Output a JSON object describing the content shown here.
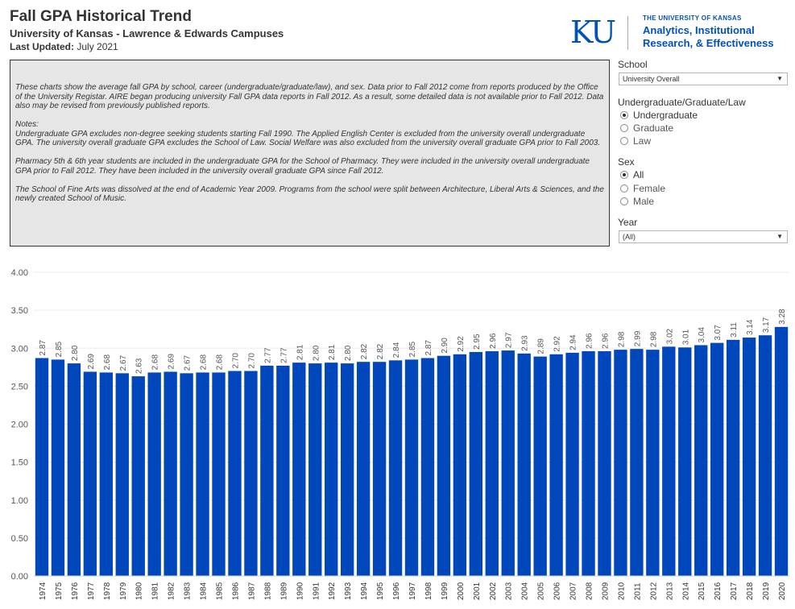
{
  "header": {
    "title": "Fall GPA Historical Trend",
    "subtitle": "University of Kansas - Lawrence & Edwards Campuses",
    "updated_label": "Last Updated:",
    "updated_value": "July 2021"
  },
  "logo": {
    "mark": "KU",
    "top": "THE UNIVERSITY OF KANSAS",
    "line1": "Analytics, Institutional",
    "line2": "Research, & Effectiveness"
  },
  "notes": {
    "p1": "These charts show the average fall GPA by school, career (undergraduate/graduate/law), and sex. Data prior to Fall 2012 come from reports produced by the Office of the University Registar. AIRE began producing university Fall GPA data reports in Fall 2012. As a result, some detailed data is not available prior to Fall 2012. Data also may be revised from previously published reports.",
    "p2_title": "Notes:",
    "p2": "Undergraduate GPA excludes non-degree seeking students starting Fall 1990. The Applied English Center is excluded from the university overall undergraduate GPA. The university overall graduate GPA excludes the School of Law. Social Welfare was also excluded from the university overall graduate GPA prior to Fall 2003.",
    "p3": "Pharmacy 5th & 6th year students are included in the undergraduate GPA for the School of Pharmacy. They were included in the university overall undergraduate GPA prior to Fall 2012. They have been included in the university overall graduate GPA since Fall 2012.",
    "p4": "The School of Fine Arts was dissolved at the end of Academic Year 2009. Programs from the school were split between Architecture, Liberal Arts & Sciences, and the newly created School of Music."
  },
  "filters": {
    "school": {
      "label": "School",
      "value": "University Overall"
    },
    "career": {
      "label": "Undergraduate/Graduate/Law",
      "options": [
        "Undergraduate",
        "Graduate",
        "Law"
      ],
      "selected": "Undergraduate"
    },
    "sex": {
      "label": "Sex",
      "options": [
        "All",
        "Female",
        "Male"
      ],
      "selected": "All"
    },
    "year": {
      "label": "Year",
      "value": "(All)"
    }
  },
  "icons": {
    "dropdown": "chevron-down-icon",
    "radio": "radio-icon"
  },
  "colors": {
    "bar": "#0047bb",
    "accent": "#0051ba"
  },
  "chart_data": {
    "type": "bar",
    "title": "",
    "xlabel": "",
    "ylabel": "",
    "ylim": [
      0,
      4
    ],
    "yticks": [
      "0.00",
      "0.50",
      "1.00",
      "1.50",
      "2.00",
      "2.50",
      "3.00",
      "3.50",
      "4.00"
    ],
    "categories": [
      "1974",
      "1975",
      "1976",
      "1977",
      "1978",
      "1979",
      "1980",
      "1981",
      "1982",
      "1983",
      "1984",
      "1985",
      "1986",
      "1987",
      "1988",
      "1989",
      "1990",
      "1991",
      "1992",
      "1993",
      "1994",
      "1995",
      "1996",
      "1997",
      "1998",
      "1999",
      "2000",
      "2001",
      "2002",
      "2003",
      "2004",
      "2005",
      "2006",
      "2007",
      "2008",
      "2009",
      "2010",
      "2011",
      "2012",
      "2013",
      "2014",
      "2015",
      "2016",
      "2017",
      "2018",
      "2019",
      "2020"
    ],
    "values": [
      2.87,
      2.85,
      2.8,
      2.69,
      2.68,
      2.67,
      2.63,
      2.68,
      2.69,
      2.67,
      2.68,
      2.68,
      2.7,
      2.7,
      2.77,
      2.77,
      2.81,
      2.8,
      2.81,
      2.8,
      2.82,
      2.82,
      2.84,
      2.85,
      2.87,
      2.9,
      2.92,
      2.95,
      2.96,
      2.97,
      2.93,
      2.89,
      2.92,
      2.94,
      2.96,
      2.96,
      2.98,
      2.99,
      2.98,
      3.02,
      3.01,
      3.04,
      3.07,
      3.11,
      3.14,
      3.17,
      3.28
    ],
    "labels": [
      "2.87",
      "2.85",
      "2.80",
      "2.69",
      "2.68",
      "2.67",
      "2.63",
      "2.68",
      "2.69",
      "2.67",
      "2.68",
      "2.68",
      "2.70",
      "2.70",
      "2.77",
      "2.77",
      "2.81",
      "2.80",
      "2.81",
      "2.80",
      "2.82",
      "2.82",
      "2.84",
      "2.85",
      "2.87",
      "2.90",
      "2.92",
      "2.95",
      "2.96",
      "2.97",
      "2.93",
      "2.89",
      "2.92",
      "2.94",
      "2.96",
      "2.96",
      "2.98",
      "2.99",
      "2.98",
      "3.02",
      "3.01",
      "3.04",
      "3.07",
      "3.11",
      "3.14",
      "3.17",
      "3.28"
    ],
    "gridlines": true
  }
}
